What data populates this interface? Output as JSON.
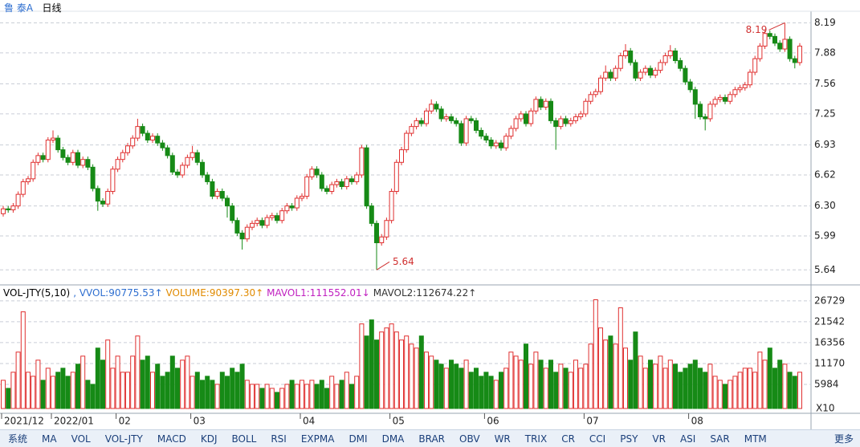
{
  "header": {
    "stock": "鲁 泰A",
    "period": "日线"
  },
  "chart_data": [
    {
      "type": "candlestick",
      "up_color": "#e03030",
      "down_color": "#168a16",
      "grid": true,
      "annotations": [
        "5.64",
        "8.19"
      ],
      "ylim": [
        5.51,
        8.26
      ],
      "yticks": [
        8.19,
        7.88,
        7.56,
        7.25,
        6.93,
        6.62,
        {
          "value": 6.3,
          "label": "6.30"
        },
        5.99,
        5.64
      ],
      "categories": [
        "2021/12",
        null,
        null,
        null,
        null,
        null,
        null,
        null,
        null,
        null,
        "2022/01",
        null,
        null,
        null,
        null,
        null,
        null,
        null,
        null,
        null,
        null,
        null,
        null,
        "02",
        null,
        null,
        null,
        null,
        null,
        null,
        null,
        null,
        null,
        null,
        null,
        null,
        null,
        null,
        "03",
        null,
        null,
        null,
        null,
        null,
        null,
        null,
        null,
        null,
        null,
        null,
        null,
        null,
        null,
        null,
        null,
        null,
        null,
        null,
        null,
        null,
        "04",
        null,
        null,
        null,
        null,
        null,
        null,
        null,
        null,
        null,
        null,
        null,
        null,
        null,
        null,
        null,
        null,
        null,
        "05",
        null,
        null,
        null,
        null,
        null,
        null,
        null,
        null,
        null,
        null,
        null,
        null,
        null,
        null,
        null,
        null,
        null,
        null,
        "06",
        null,
        null,
        null,
        null,
        null,
        null,
        null,
        null,
        null,
        null,
        null,
        null,
        null,
        null,
        null,
        null,
        null,
        null,
        null,
        "07",
        null,
        null,
        null,
        null,
        null,
        null,
        null,
        null,
        null,
        null,
        null,
        null,
        null,
        null,
        null,
        null,
        null,
        null,
        null,
        null,
        "08",
        null,
        null,
        null,
        null,
        null,
        null,
        null,
        null,
        null,
        null,
        null,
        null,
        null,
        null,
        null,
        null,
        null,
        null,
        null,
        null,
        null,
        null
      ],
      "ohlc": [
        [
          6.22,
          6.3,
          6.19,
          6.27
        ],
        [
          6.27,
          6.3,
          6.23,
          6.26
        ],
        [
          6.26,
          6.33,
          6.23,
          6.3
        ],
        [
          6.3,
          6.45,
          6.27,
          6.42
        ],
        [
          6.42,
          6.58,
          6.39,
          6.55
        ],
        [
          6.55,
          6.61,
          6.52,
          6.58
        ],
        [
          6.58,
          6.78,
          6.55,
          6.75
        ],
        [
          6.75,
          6.85,
          6.72,
          6.82
        ],
        [
          6.82,
          6.85,
          6.75,
          6.78
        ],
        [
          6.78,
          7.01,
          6.75,
          6.98
        ],
        [
          6.98,
          7.08,
          6.95,
          7.0
        ],
        [
          7.0,
          7.03,
          6.85,
          6.88
        ],
        [
          6.88,
          6.91,
          6.77,
          6.8
        ],
        [
          6.8,
          6.83,
          6.72,
          6.75
        ],
        [
          6.75,
          6.88,
          6.72,
          6.85
        ],
        [
          6.85,
          6.88,
          6.69,
          6.72
        ],
        [
          6.72,
          6.81,
          6.69,
          6.78
        ],
        [
          6.78,
          6.81,
          6.67,
          6.7
        ],
        [
          6.7,
          6.73,
          6.45,
          6.48
        ],
        [
          6.48,
          6.51,
          6.25,
          6.35
        ],
        [
          6.35,
          6.38,
          6.29,
          6.32
        ],
        [
          6.32,
          6.48,
          6.29,
          6.45
        ],
        [
          6.45,
          6.71,
          6.42,
          6.68
        ],
        [
          6.68,
          6.81,
          6.65,
          6.78
        ],
        [
          6.78,
          6.88,
          6.75,
          6.85
        ],
        [
          6.85,
          6.95,
          6.82,
          6.92
        ],
        [
          6.92,
          7.03,
          6.89,
          7.0
        ],
        [
          7.0,
          7.2,
          6.97,
          7.12
        ],
        [
          7.12,
          7.15,
          7.02,
          7.05
        ],
        [
          7.05,
          7.08,
          6.95,
          6.98
        ],
        [
          6.98,
          7.05,
          6.95,
          7.02
        ],
        [
          7.02,
          7.05,
          6.92,
          6.95
        ],
        [
          6.95,
          6.98,
          6.87,
          6.9
        ],
        [
          6.9,
          6.93,
          6.79,
          6.82
        ],
        [
          6.82,
          6.85,
          6.62,
          6.65
        ],
        [
          6.65,
          6.68,
          6.59,
          6.62
        ],
        [
          6.62,
          6.75,
          6.59,
          6.72
        ],
        [
          6.72,
          6.83,
          6.69,
          6.8
        ],
        [
          6.8,
          6.92,
          6.77,
          6.85
        ],
        [
          6.85,
          6.88,
          6.72,
          6.75
        ],
        [
          6.75,
          6.78,
          6.59,
          6.62
        ],
        [
          6.62,
          6.65,
          6.52,
          6.55
        ],
        [
          6.55,
          6.58,
          6.37,
          6.4
        ],
        [
          6.4,
          6.48,
          6.37,
          6.45
        ],
        [
          6.45,
          6.48,
          6.35,
          6.38
        ],
        [
          6.38,
          6.41,
          6.18,
          6.3
        ],
        [
          6.3,
          6.33,
          6.12,
          6.15
        ],
        [
          6.15,
          6.18,
          5.99,
          6.02
        ],
        [
          6.02,
          6.05,
          5.85,
          5.96
        ],
        [
          5.96,
          6.11,
          5.93,
          6.08
        ],
        [
          6.08,
          6.15,
          6.05,
          6.12
        ],
        [
          6.12,
          6.18,
          6.09,
          6.15
        ],
        [
          6.15,
          6.18,
          6.07,
          6.1
        ],
        [
          6.1,
          6.21,
          6.07,
          6.18
        ],
        [
          6.18,
          6.23,
          6.15,
          6.2
        ],
        [
          6.2,
          6.23,
          6.12,
          6.15
        ],
        [
          6.15,
          6.28,
          6.12,
          6.25
        ],
        [
          6.25,
          6.33,
          6.22,
          6.3
        ],
        [
          6.3,
          6.33,
          6.25,
          6.28
        ],
        [
          6.28,
          6.41,
          6.25,
          6.38
        ],
        [
          6.38,
          6.43,
          6.35,
          6.4
        ],
        [
          6.4,
          6.63,
          6.37,
          6.6
        ],
        [
          6.6,
          6.71,
          6.57,
          6.68
        ],
        [
          6.68,
          6.71,
          6.59,
          6.62
        ],
        [
          6.62,
          6.65,
          6.45,
          6.48
        ],
        [
          6.48,
          6.51,
          6.42,
          6.45
        ],
        [
          6.45,
          6.55,
          6.42,
          6.52
        ],
        [
          6.52,
          6.58,
          6.49,
          6.55
        ],
        [
          6.55,
          6.58,
          6.47,
          6.5
        ],
        [
          6.5,
          6.61,
          6.47,
          6.58
        ],
        [
          6.58,
          6.61,
          6.52,
          6.55
        ],
        [
          6.55,
          6.65,
          6.52,
          6.62
        ],
        [
          6.62,
          6.93,
          6.59,
          6.9
        ],
        [
          6.9,
          6.93,
          6.27,
          6.3
        ],
        [
          6.3,
          6.33,
          6.09,
          6.12
        ],
        [
          6.12,
          6.15,
          5.64,
          5.92
        ],
        [
          5.92,
          6.01,
          5.89,
          5.98
        ],
        [
          5.98,
          6.18,
          5.95,
          6.15
        ],
        [
          6.15,
          6.48,
          6.12,
          6.45
        ],
        [
          6.45,
          6.78,
          6.42,
          6.75
        ],
        [
          6.75,
          6.91,
          6.72,
          6.88
        ],
        [
          6.88,
          7.08,
          6.85,
          7.05
        ],
        [
          7.05,
          7.15,
          7.02,
          7.12
        ],
        [
          7.12,
          7.21,
          7.09,
          7.18
        ],
        [
          7.18,
          7.21,
          7.12,
          7.15
        ],
        [
          7.15,
          7.31,
          7.12,
          7.28
        ],
        [
          7.28,
          7.4,
          7.25,
          7.35
        ],
        [
          7.35,
          7.38,
          7.27,
          7.3
        ],
        [
          7.3,
          7.33,
          7.17,
          7.2
        ],
        [
          7.2,
          7.25,
          7.17,
          7.22
        ],
        [
          7.22,
          7.25,
          7.15,
          7.18
        ],
        [
          7.18,
          7.21,
          7.12,
          7.15
        ],
        [
          7.15,
          7.18,
          6.92,
          6.95
        ],
        [
          6.95,
          7.23,
          6.92,
          7.2
        ],
        [
          7.2,
          7.23,
          7.15,
          7.18
        ],
        [
          7.18,
          7.21,
          7.05,
          7.08
        ],
        [
          7.08,
          7.11,
          6.99,
          7.02
        ],
        [
          7.02,
          7.05,
          6.95,
          6.98
        ],
        [
          6.98,
          7.01,
          6.89,
          6.92
        ],
        [
          6.92,
          6.98,
          6.89,
          6.95
        ],
        [
          6.95,
          6.98,
          6.87,
          6.9
        ],
        [
          6.9,
          7.05,
          6.87,
          7.02
        ],
        [
          7.02,
          7.13,
          6.99,
          7.1
        ],
        [
          7.1,
          7.23,
          7.07,
          7.2
        ],
        [
          7.2,
          7.28,
          7.17,
          7.25
        ],
        [
          7.25,
          7.28,
          7.12,
          7.15
        ],
        [
          7.15,
          7.31,
          7.12,
          7.28
        ],
        [
          7.28,
          7.43,
          7.25,
          7.4
        ],
        [
          7.4,
          7.43,
          7.29,
          7.32
        ],
        [
          7.32,
          7.41,
          7.29,
          7.38
        ],
        [
          7.38,
          7.41,
          7.15,
          7.18
        ],
        [
          7.18,
          7.21,
          6.88,
          7.12
        ],
        [
          7.12,
          7.23,
          7.09,
          7.2
        ],
        [
          7.2,
          7.23,
          7.12,
          7.15
        ],
        [
          7.15,
          7.21,
          7.12,
          7.18
        ],
        [
          7.18,
          7.25,
          7.15,
          7.22
        ],
        [
          7.22,
          7.28,
          7.19,
          7.25
        ],
        [
          7.25,
          7.41,
          7.22,
          7.38
        ],
        [
          7.38,
          7.48,
          7.35,
          7.45
        ],
        [
          7.45,
          7.51,
          7.42,
          7.48
        ],
        [
          7.48,
          7.65,
          7.45,
          7.62
        ],
        [
          7.62,
          7.75,
          7.59,
          7.68
        ],
        [
          7.68,
          7.71,
          7.59,
          7.62
        ],
        [
          7.62,
          7.75,
          7.59,
          7.72
        ],
        [
          7.72,
          7.88,
          7.69,
          7.85
        ],
        [
          7.85,
          7.97,
          7.82,
          7.9
        ],
        [
          7.9,
          7.93,
          7.75,
          7.78
        ],
        [
          7.78,
          7.81,
          7.59,
          7.62
        ],
        [
          7.62,
          7.71,
          7.59,
          7.68
        ],
        [
          7.68,
          7.75,
          7.65,
          7.72
        ],
        [
          7.72,
          7.75,
          7.62,
          7.65
        ],
        [
          7.65,
          7.73,
          7.62,
          7.7
        ],
        [
          7.7,
          7.81,
          7.67,
          7.78
        ],
        [
          7.78,
          7.88,
          7.75,
          7.85
        ],
        [
          7.85,
          7.96,
          7.82,
          7.9
        ],
        [
          7.9,
          7.93,
          7.77,
          7.8
        ],
        [
          7.8,
          7.83,
          7.69,
          7.72
        ],
        [
          7.72,
          7.75,
          7.55,
          7.58
        ],
        [
          7.58,
          7.61,
          7.47,
          7.5
        ],
        [
          7.5,
          7.53,
          7.2,
          7.35
        ],
        [
          7.35,
          7.38,
          7.19,
          7.22
        ],
        [
          7.22,
          7.25,
          7.08,
          7.2
        ],
        [
          7.2,
          7.38,
          7.17,
          7.35
        ],
        [
          7.35,
          7.43,
          7.32,
          7.4
        ],
        [
          7.4,
          7.45,
          7.37,
          7.42
        ],
        [
          7.42,
          7.45,
          7.35,
          7.38
        ],
        [
          7.38,
          7.48,
          7.35,
          7.45
        ],
        [
          7.45,
          7.53,
          7.42,
          7.5
        ],
        [
          7.5,
          7.55,
          7.47,
          7.52
        ],
        [
          7.52,
          7.58,
          7.49,
          7.55
        ],
        [
          7.55,
          7.71,
          7.52,
          7.68
        ],
        [
          7.68,
          7.85,
          7.65,
          7.82
        ],
        [
          7.82,
          7.98,
          7.79,
          7.95
        ],
        [
          7.95,
          8.11,
          7.92,
          8.08
        ],
        [
          8.08,
          8.11,
          8.02,
          8.05
        ],
        [
          8.05,
          8.08,
          7.95,
          7.98
        ],
        [
          7.98,
          8.01,
          7.89,
          7.92
        ],
        [
          7.92,
          8.19,
          7.89,
          8.02
        ],
        [
          8.02,
          8.05,
          7.79,
          7.82
        ],
        [
          7.82,
          7.85,
          7.72,
          7.78
        ],
        [
          7.78,
          7.98,
          7.75,
          7.95
        ]
      ]
    },
    {
      "type": "bar",
      "title": "VOL-JTY(5,10)",
      "y_unit": "X10",
      "indicators": [
        {
          "label": ", VVOL:90775.53↑",
          "color": "#2f6fd0"
        },
        {
          "label": "VOLUME:90397.30↑",
          "color": "#e08a00"
        },
        {
          "label": "MAVOL1:111552.01↓",
          "color": "#c020c0"
        },
        {
          "label": "MAVOL2:112674.22↑",
          "color": "#333333"
        }
      ],
      "ylim": [
        0,
        27700
      ],
      "yticks": [
        26729,
        21542,
        16356,
        11170,
        5984
      ],
      "values": [
        7000,
        5000,
        9000,
        14000,
        24000,
        9000,
        8000,
        12000,
        7000,
        10000,
        8000,
        9000,
        10000,
        8000,
        9000,
        11000,
        13000,
        7000,
        6000,
        15000,
        12000,
        17000,
        10000,
        13000,
        9000,
        9000,
        13000,
        18000,
        12000,
        13000,
        9000,
        11000,
        8000,
        9000,
        13000,
        10000,
        12000,
        13000,
        8000,
        9000,
        7000,
        8000,
        7000,
        6000,
        9000,
        8000,
        10000,
        9000,
        11000,
        7000,
        6000,
        6000,
        5000,
        6000,
        5000,
        4000,
        5000,
        6000,
        7000,
        6000,
        7000,
        6000,
        7000,
        6000,
        7000,
        5000,
        8000,
        6000,
        7000,
        9000,
        6000,
        8000,
        21000,
        18000,
        22000,
        17000,
        19000,
        20000,
        21000,
        19000,
        17000,
        18000,
        16000,
        15000,
        18000,
        14000,
        13000,
        12000,
        11000,
        10000,
        12000,
        11000,
        10000,
        12000,
        9000,
        10000,
        8000,
        9000,
        8000,
        7000,
        9000,
        10000,
        14000,
        13000,
        12000,
        16000,
        11000,
        14000,
        12000,
        10000,
        12000,
        9000,
        11000,
        10000,
        9000,
        12000,
        10000,
        11000,
        16000,
        27000,
        20000,
        17000,
        18000,
        16000,
        25000,
        15000,
        12000,
        19000,
        13000,
        10000,
        12000,
        11000,
        13000,
        10000,
        12000,
        11000,
        9000,
        10000,
        11000,
        12000,
        10000,
        9000,
        11000,
        8000,
        7000,
        6000,
        7000,
        8000,
        9000,
        10000,
        10000,
        9000,
        14000,
        12000,
        15000,
        10000,
        12000,
        11000,
        9000,
        8000,
        9000
      ]
    }
  ],
  "toolbar": [
    "系统",
    "MA",
    "VOL",
    "VOL-JTY",
    "MACD",
    "KDJ",
    "BOLL",
    "RSI",
    "EXPMA",
    "DMI",
    "DMA",
    "BRAR",
    "OBV",
    "WR",
    "TRIX",
    "CR",
    "CCI",
    "PSY",
    "VR",
    "ASI",
    "SAR",
    "MTM",
    "更多"
  ]
}
